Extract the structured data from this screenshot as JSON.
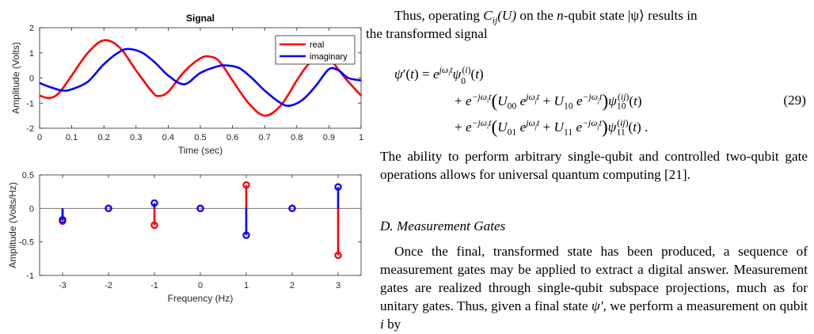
{
  "figure": {
    "chart_data": [
      {
        "type": "line",
        "title": "Signal",
        "xlabel": "Time (sec)",
        "ylabel": "Amplitude (Volts)",
        "xlim": [
          0,
          1
        ],
        "ylim": [
          -2,
          2
        ],
        "xticks": [
          "0",
          "0.1",
          "0.2",
          "0.3",
          "0.4",
          "0.5",
          "0.6",
          "0.7",
          "0.8",
          "0.9",
          "1"
        ],
        "yticks": [
          "-2",
          "-1",
          "0",
          "1",
          "2"
        ],
        "legend_position": "top-right",
        "series": [
          {
            "name": "real",
            "color": "#ff0000",
            "x": [
              0,
              0.03,
              0.06,
              0.1,
              0.15,
              0.2,
              0.25,
              0.3,
              0.35,
              0.37,
              0.4,
              0.45,
              0.5,
              0.53,
              0.56,
              0.6,
              0.65,
              0.7,
              0.75,
              0.8,
              0.83,
              0.87,
              0.9,
              0.95,
              1
            ],
            "y": [
              -0.7,
              -0.8,
              -0.6,
              0.1,
              1.0,
              1.5,
              1.2,
              0.3,
              -0.55,
              -0.72,
              -0.55,
              0.25,
              0.78,
              0.85,
              0.65,
              -0.1,
              -1.0,
              -1.5,
              -1.1,
              -0.1,
              0.45,
              0.95,
              0.8,
              0.0,
              -0.7
            ]
          },
          {
            "name": "imaginary",
            "color": "#0000ff",
            "x": [
              0,
              0.03,
              0.07,
              0.1,
              0.15,
              0.2,
              0.25,
              0.28,
              0.32,
              0.36,
              0.4,
              0.45,
              0.5,
              0.55,
              0.58,
              0.62,
              0.66,
              0.7,
              0.75,
              0.78,
              0.82,
              0.86,
              0.9,
              0.93,
              0.96,
              1
            ],
            "y": [
              -0.2,
              -0.35,
              -0.5,
              -0.45,
              -0.15,
              0.55,
              1.05,
              1.15,
              1.0,
              0.6,
              0.1,
              -0.25,
              0.2,
              0.45,
              0.5,
              0.4,
              0.0,
              -0.5,
              -1.0,
              -1.1,
              -0.85,
              -0.3,
              0.35,
              0.3,
              0.0,
              -0.1
            ]
          }
        ]
      },
      {
        "type": "stem",
        "title": "",
        "xlabel": "Frequency (Hz)",
        "ylabel": "Amplitude (Volts/Hz)",
        "xlim": [
          -3.5,
          3.5
        ],
        "ylim": [
          -1,
          0.5
        ],
        "xticks": [
          "-3",
          "-2",
          "-1",
          "0",
          "1",
          "2",
          "3"
        ],
        "yticks": [
          "0.5",
          "0",
          "-0.5",
          "-1"
        ],
        "series": [
          {
            "name": "",
            "color": "#ff0000",
            "x": [
              -3,
              -2,
              -1,
              0,
              1,
              2,
              3
            ],
            "y": [
              -0.19,
              0,
              -0.25,
              0,
              0.35,
              0,
              -0.7
            ]
          },
          {
            "name": "",
            "color": "#0000ff",
            "x": [
              -3,
              -2,
              -1,
              0,
              1,
              2,
              3
            ],
            "y": [
              -0.17,
              0,
              0.08,
              0,
              -0.4,
              0,
              0.32
            ]
          }
        ]
      }
    ]
  },
  "text": {
    "intro_a": "Thus, operating ",
    "intro_op": "C",
    "intro_op_sub": "ij",
    "intro_op_arg": "(U)",
    "intro_b": " on the ",
    "intro_n": "n",
    "intro_c": "-qubit state |ψ⟩ results in",
    "intro_d": "the transformed signal",
    "eq_line1": "ψ′(t) = e^{jω_i t} ψ_0^{(i)}(t)",
    "eq_line2": "+ e^{−jω_i t} ( U_00 e^{jω_j t} + U_10 e^{−jω_j t} ) ψ_10^{(ij)}(t)",
    "eq_line3": "+ e^{−jω_i t} ( U_01 e^{jω_j t} + U_11 e^{−jω_j t} ) ψ_11^{(ij)}(t) .",
    "eq_number": "(29)",
    "para2": "The ability to perform arbitrary single-qubit and controlled two-qubit gate operations allows for universal quantum computing [21].",
    "section": "D. Measurement Gates",
    "para3_a": "Once the final, transformed state has been produced, a sequence of measurement gates may be applied to extract a digital answer. Measurement gates are realized through single-qubit subspace projections, much as for unitary gates. Thus, given a final state ",
    "para3_psi": "ψ′",
    "para3_b": ", we perform a measurement on qubit ",
    "para3_i": "i",
    "para3_c": " by"
  }
}
